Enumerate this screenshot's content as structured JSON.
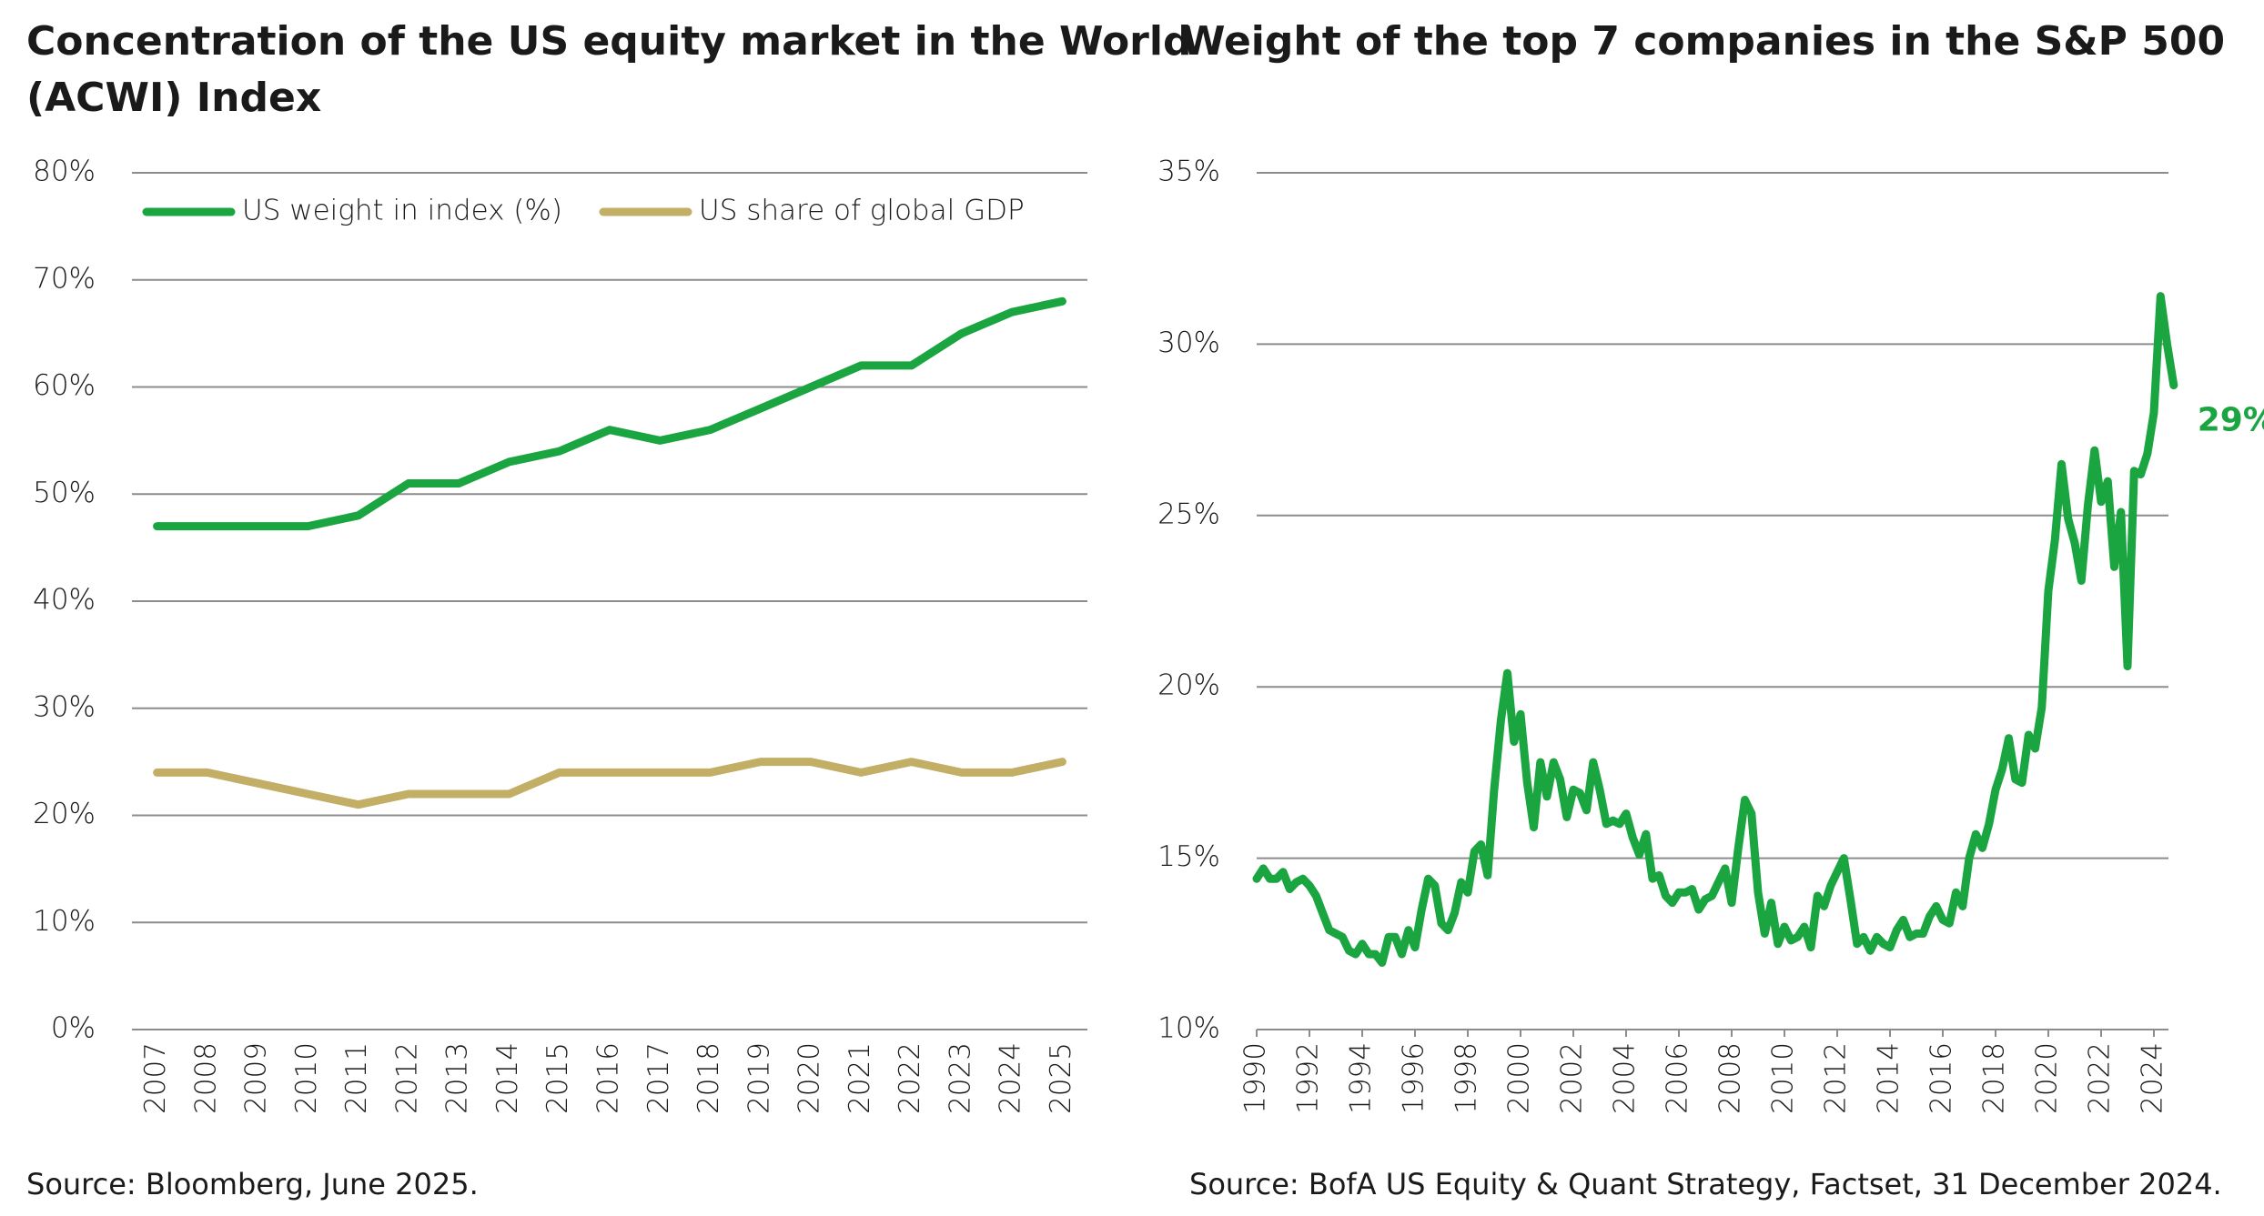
{
  "chart_data": [
    {
      "type": "line",
      "title": [
        "Concentration of the US equity market in the World",
        "(ACWI) Index"
      ],
      "categories": [
        "2007",
        "2008",
        "2009",
        "2010",
        "2011",
        "2012",
        "2013",
        "2014",
        "2015",
        "2016",
        "2017",
        "2018",
        "2019",
        "2020",
        "2021",
        "2022",
        "2023",
        "2024",
        "2025"
      ],
      "series": [
        {
          "name": "US weight in index (%)",
          "color": "#1aa541",
          "values": [
            47,
            47,
            47,
            47,
            48,
            51,
            51,
            53,
            54,
            56,
            55,
            56,
            58,
            60,
            62,
            62,
            65,
            67,
            68
          ]
        },
        {
          "name": "US share of global GDP",
          "color": "#c2ae64",
          "values": [
            24,
            24,
            23,
            22,
            21,
            22,
            22,
            22,
            24,
            24,
            24,
            24,
            25,
            25,
            24,
            25,
            24,
            24,
            25
          ]
        }
      ],
      "ylim": [
        0,
        80
      ],
      "yticks": [
        {
          "value": 0,
          "label": "0%"
        },
        {
          "value": 10,
          "label": "10%"
        },
        {
          "value": 20,
          "label": "20%"
        },
        {
          "value": 30,
          "label": "30%"
        },
        {
          "value": 40,
          "label": "40%"
        },
        {
          "value": 50,
          "label": "50%"
        },
        {
          "value": 60,
          "label": "60%"
        },
        {
          "value": 70,
          "label": "70%"
        },
        {
          "value": 80,
          "label": "80%"
        }
      ],
      "grid": true,
      "legend": "top",
      "source": "Source: Bloomberg, June 2025."
    },
    {
      "type": "line",
      "title": [
        "Weight of the top 7 companies in the S&P 500"
      ],
      "x": [
        1990,
        1990.25,
        1990.5,
        1990.75,
        1991,
        1991.25,
        1991.5,
        1991.75,
        1992,
        1992.25,
        1992.5,
        1992.75,
        1993,
        1993.25,
        1993.5,
        1993.75,
        1994,
        1994.25,
        1994.5,
        1994.75,
        1995,
        1995.25,
        1995.5,
        1995.75,
        1996,
        1996.25,
        1996.5,
        1996.75,
        1997,
        1997.25,
        1997.5,
        1997.75,
        1998,
        1998.25,
        1998.5,
        1998.75,
        1999,
        1999.25,
        1999.5,
        1999.75,
        2000,
        2000.25,
        2000.5,
        2000.75,
        2001,
        2001.25,
        2001.5,
        2001.75,
        2002,
        2002.25,
        2002.5,
        2002.75,
        2003,
        2003.25,
        2003.5,
        2003.75,
        2004,
        2004.25,
        2004.5,
        2004.75,
        2005,
        2005.25,
        2005.5,
        2005.75,
        2006,
        2006.25,
        2006.5,
        2006.75,
        2007,
        2007.25,
        2007.5,
        2007.75,
        2008,
        2008.25,
        2008.5,
        2008.75,
        2009,
        2009.25,
        2009.5,
        2009.75,
        2010,
        2010.25,
        2010.5,
        2010.75,
        2011,
        2011.25,
        2011.5,
        2011.75,
        2012,
        2012.25,
        2012.5,
        2012.75,
        2013,
        2013.25,
        2013.5,
        2013.75,
        2014,
        2014.25,
        2014.5,
        2014.75,
        2015,
        2015.25,
        2015.5,
        2015.75,
        2016,
        2016.25,
        2016.5,
        2016.75,
        2017,
        2017.25,
        2017.5,
        2017.75,
        2018,
        2018.25,
        2018.5,
        2018.75,
        2019,
        2019.25,
        2019.5,
        2019.75,
        2020,
        2020.25,
        2020.5,
        2020.75,
        2021,
        2021.25,
        2021.5,
        2021.75,
        2022,
        2022.25,
        2022.5,
        2022.75,
        2023,
        2023.25,
        2023.5,
        2023.75,
        2024,
        2024.25,
        2024.5,
        2024.75
      ],
      "series": [
        {
          "name": null,
          "color": "#1aa541",
          "values": [
            14.4,
            14.7,
            14.4,
            14.4,
            14.6,
            14.1,
            14.3,
            14.4,
            14.2,
            13.9,
            13.4,
            12.9,
            12.8,
            12.7,
            12.3,
            12.2,
            12.5,
            12.2,
            12.2,
            11.95,
            12.7,
            12.7,
            12.2,
            12.9,
            12.4,
            13.5,
            14.4,
            14.2,
            13.1,
            12.9,
            13.4,
            14.3,
            14.0,
            15.2,
            15.4,
            14.5,
            17,
            19,
            20.4,
            18.4,
            19.2,
            17.2,
            15.9,
            17.8,
            16.8,
            17.8,
            17.3,
            16.2,
            17,
            16.9,
            16.4,
            17.8,
            17.0,
            16.0,
            16.1,
            16.0,
            16.3,
            15.6,
            15.1,
            15.7,
            14.4,
            14.5,
            13.9,
            13.7,
            14.0,
            14.0,
            14.1,
            13.5,
            13.8,
            13.9,
            14.3,
            14.7,
            13.7,
            15.3,
            16.7,
            16.3,
            14.0,
            12.8,
            13.7,
            12.5,
            13.0,
            12.6,
            12.7,
            13.0,
            12.4,
            13.9,
            13.6,
            14.2,
            14.6,
            15.0,
            13.8,
            12.5,
            12.7,
            12.3,
            12.7,
            12.5,
            12.4,
            12.9,
            13.2,
            12.7,
            12.8,
            12.8,
            13.3,
            13.6,
            13.2,
            13.1,
            14.0,
            13.6,
            15.0,
            15.7,
            15.3,
            16.0,
            17,
            17.6,
            18.5,
            17.3,
            17.2,
            18.6,
            18.2,
            19.4,
            22.8,
            24.3,
            26.5,
            24.9,
            24.2,
            23.1,
            25.3,
            26.9,
            25.4,
            26.0,
            23.5,
            25.1,
            20.6,
            26.3,
            26.2,
            26.8,
            28,
            31.4,
            30,
            28.8
          ]
        }
      ],
      "xlim": [
        1990,
        2025
      ],
      "xticks": [
        1990,
        1992,
        1994,
        1996,
        1998,
        2000,
        2002,
        2004,
        2006,
        2008,
        2010,
        2012,
        2014,
        2016,
        2018,
        2020,
        2022,
        2024
      ],
      "ylim": [
        10,
        35
      ],
      "yticks": [
        {
          "value": 10,
          "label": "10%"
        },
        {
          "value": 15,
          "label": "15%"
        },
        {
          "value": 20,
          "label": "20%"
        },
        {
          "value": 25,
          "label": "25%"
        },
        {
          "value": 30,
          "label": "30%"
        },
        {
          "value": 35,
          "label": "35%"
        }
      ],
      "grid": true,
      "annotations": [
        "29%"
      ],
      "source": "Source: BofA US Equity & Quant Strategy, Factset, 31 December 2024."
    }
  ]
}
